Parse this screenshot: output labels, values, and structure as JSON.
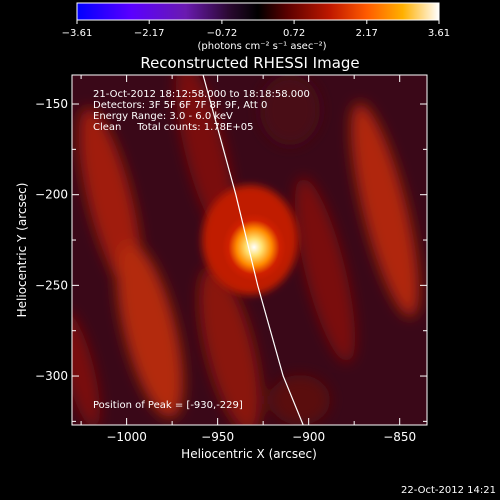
{
  "chart_data": {
    "type": "heatmap",
    "title": "Reconstructed RHESSI Image",
    "xlabel": "Heliocentric X (arcsec)",
    "ylabel": "Heliocentric Y (arcsec)",
    "xlim": [
      -1030,
      -835
    ],
    "ylim": [
      -327,
      -134
    ],
    "xticks": [
      -1000,
      -950,
      -900,
      -850
    ],
    "xtick_labels": [
      "−1000",
      "−950",
      "−900",
      "−850"
    ],
    "yticks": [
      -150,
      -200,
      -250,
      -300
    ],
    "ytick_labels": [
      "−150",
      "−200",
      "−250",
      "−300"
    ],
    "colorbar": {
      "ticks": [
        -3.61,
        -2.17,
        -0.72,
        0.72,
        2.17,
        3.61
      ],
      "tick_labels": [
        "−3.61",
        "−2.17",
        "−0.72",
        "0.72",
        "2.17",
        "3.61"
      ],
      "units": "(photons cm⁻² s⁻¹ asec⁻²)",
      "colors": [
        "#0000ff",
        "#8a2be2",
        "#4a0040",
        "#000000",
        "#8b0000",
        "#ff4500",
        "#ffd700",
        "#ffffff"
      ]
    },
    "peak": [
      -930,
      -229
    ],
    "limb": [
      [
        -958,
        -134
      ],
      [
        -940,
        -200
      ],
      [
        -928,
        -250
      ],
      [
        -914,
        -300
      ],
      [
        -903,
        -327
      ]
    ],
    "annotations": [
      "21-Oct-2012 18:12:58.000 to 18:18:58.000",
      "Detectors: 3F 5F 6F 7F 8F 9F, Att 0",
      "Energy Range: 3.0 - 6.0 keV",
      "Clean     Total counts: 1.78E+05",
      "Position of Peak = [-930,-229]"
    ]
  },
  "footer": {
    "timestamp": "22-Oct-2012 14:21"
  }
}
